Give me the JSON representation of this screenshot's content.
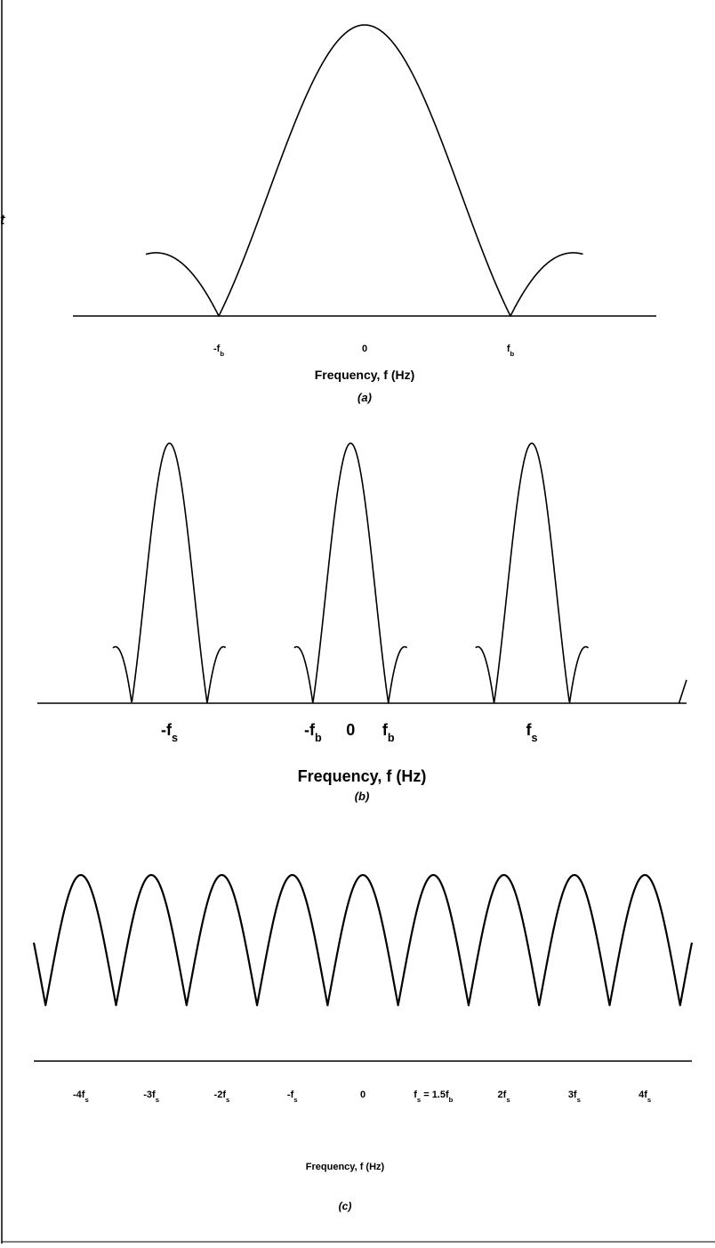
{
  "figure": {
    "stray_mark": "t"
  },
  "chart_data": [
    {
      "type": "line",
      "panel": "a",
      "title": "",
      "xlabel": "Frequency, f (Hz)",
      "caption": "(a)",
      "ylabel": "",
      "grid": false,
      "legend": "none",
      "x_unit": "f_b",
      "xlim": [
        -2,
        2
      ],
      "ylim": [
        0,
        1
      ],
      "tick_labels": [
        {
          "x": -1,
          "text": "-f",
          "sub": "b"
        },
        {
          "x": 0,
          "text": "0",
          "sub": ""
        },
        {
          "x": 1,
          "text": "f",
          "sub": "b"
        }
      ],
      "series": [
        {
          "function": "|sinc(f / f_b)|",
          "x": [
            -1.5,
            -1.25,
            -1.0,
            -0.75,
            -0.5,
            -0.25,
            0,
            0.25,
            0.5,
            0.75,
            1.0,
            1.25,
            1.5
          ],
          "values": [
            0.0,
            0.08,
            0.0,
            0.3,
            0.64,
            0.9,
            1.0,
            0.9,
            0.64,
            0.3,
            0.0,
            0.08,
            0.0
          ]
        }
      ]
    },
    {
      "type": "line",
      "panel": "b",
      "title": "",
      "xlabel": "Frequency, f (Hz)",
      "caption": "(b)",
      "ylabel": "",
      "grid": false,
      "legend": "none",
      "x_unit": "f_b",
      "xlim": [
        -8.3,
        8.9
      ],
      "ylim": [
        0,
        1
      ],
      "sampling_frequency": 4.8,
      "replica_centers": [
        -4.8,
        0,
        4.8
      ],
      "tick_labels": [
        {
          "x": -4.8,
          "text": "-f",
          "sub": "s"
        },
        {
          "x": -1,
          "text": "-f",
          "sub": "b"
        },
        {
          "x": 0,
          "text": "0",
          "sub": ""
        },
        {
          "x": 1,
          "text": "f",
          "sub": "b"
        },
        {
          "x": 4.8,
          "text": "f",
          "sub": "s"
        }
      ],
      "series": [
        {
          "function": "sum over k of |sinc((f - k*f_s) / f_b)|, k = -1..1",
          "x": [
            -5.8,
            -5.3,
            -4.8,
            -4.3,
            -3.8,
            -1.0,
            -0.5,
            0,
            0.5,
            1.0,
            3.8,
            4.3,
            4.8,
            5.3,
            5.8
          ],
          "values": [
            0.0,
            0.64,
            1.0,
            0.64,
            0.0,
            0.0,
            0.64,
            1.0,
            0.64,
            0.0,
            0.0,
            0.64,
            1.0,
            0.64,
            0.0
          ]
        }
      ]
    },
    {
      "type": "line",
      "panel": "c",
      "title": "",
      "xlabel": "Frequency, f (Hz)",
      "caption": "(c)",
      "ylabel": "",
      "grid": false,
      "legend": "none",
      "x_unit": "f_b",
      "xlim": [
        -7.0,
        7.0
      ],
      "ylim": [
        0,
        1
      ],
      "sampling_frequency": 1.5,
      "replica_centers": [
        -6,
        -4.5,
        -3,
        -1.5,
        0,
        1.5,
        3,
        4.5,
        6
      ],
      "tick_labels": [
        {
          "x": -6,
          "text": "-4f",
          "sub": "s"
        },
        {
          "x": -4.5,
          "text": "-3f",
          "sub": "s"
        },
        {
          "x": -3,
          "text": "-2f",
          "sub": "s"
        },
        {
          "x": -1.5,
          "text": "-f",
          "sub": "s"
        },
        {
          "x": 0,
          "text": "0",
          "sub": ""
        },
        {
          "x": 1.5,
          "text": "f",
          "sub": "s",
          "suffix": " = 1.5f",
          "suffix_sub": "b"
        },
        {
          "x": 3,
          "text": "2f",
          "sub": "s"
        },
        {
          "x": 4.5,
          "text": "3f",
          "sub": "s"
        },
        {
          "x": 6,
          "text": "4f",
          "sub": "s"
        }
      ],
      "series": [
        {
          "function": "sum over k of |sinc((f - k*f_s) / f_b)|, main lobes, k = -4..4",
          "x": [
            -6.0,
            -5.25,
            -4.5,
            -3.75,
            -3.0,
            -2.25,
            -1.5,
            -0.75,
            0,
            0.75,
            1.5,
            2.25,
            3.0,
            3.75,
            4.5,
            5.25,
            6.0
          ],
          "values": [
            1.0,
            0.2,
            1.0,
            0.2,
            1.0,
            0.2,
            1.0,
            0.2,
            1.0,
            0.2,
            1.0,
            0.2,
            1.0,
            0.2,
            1.0,
            0.2,
            1.0
          ]
        }
      ]
    }
  ]
}
